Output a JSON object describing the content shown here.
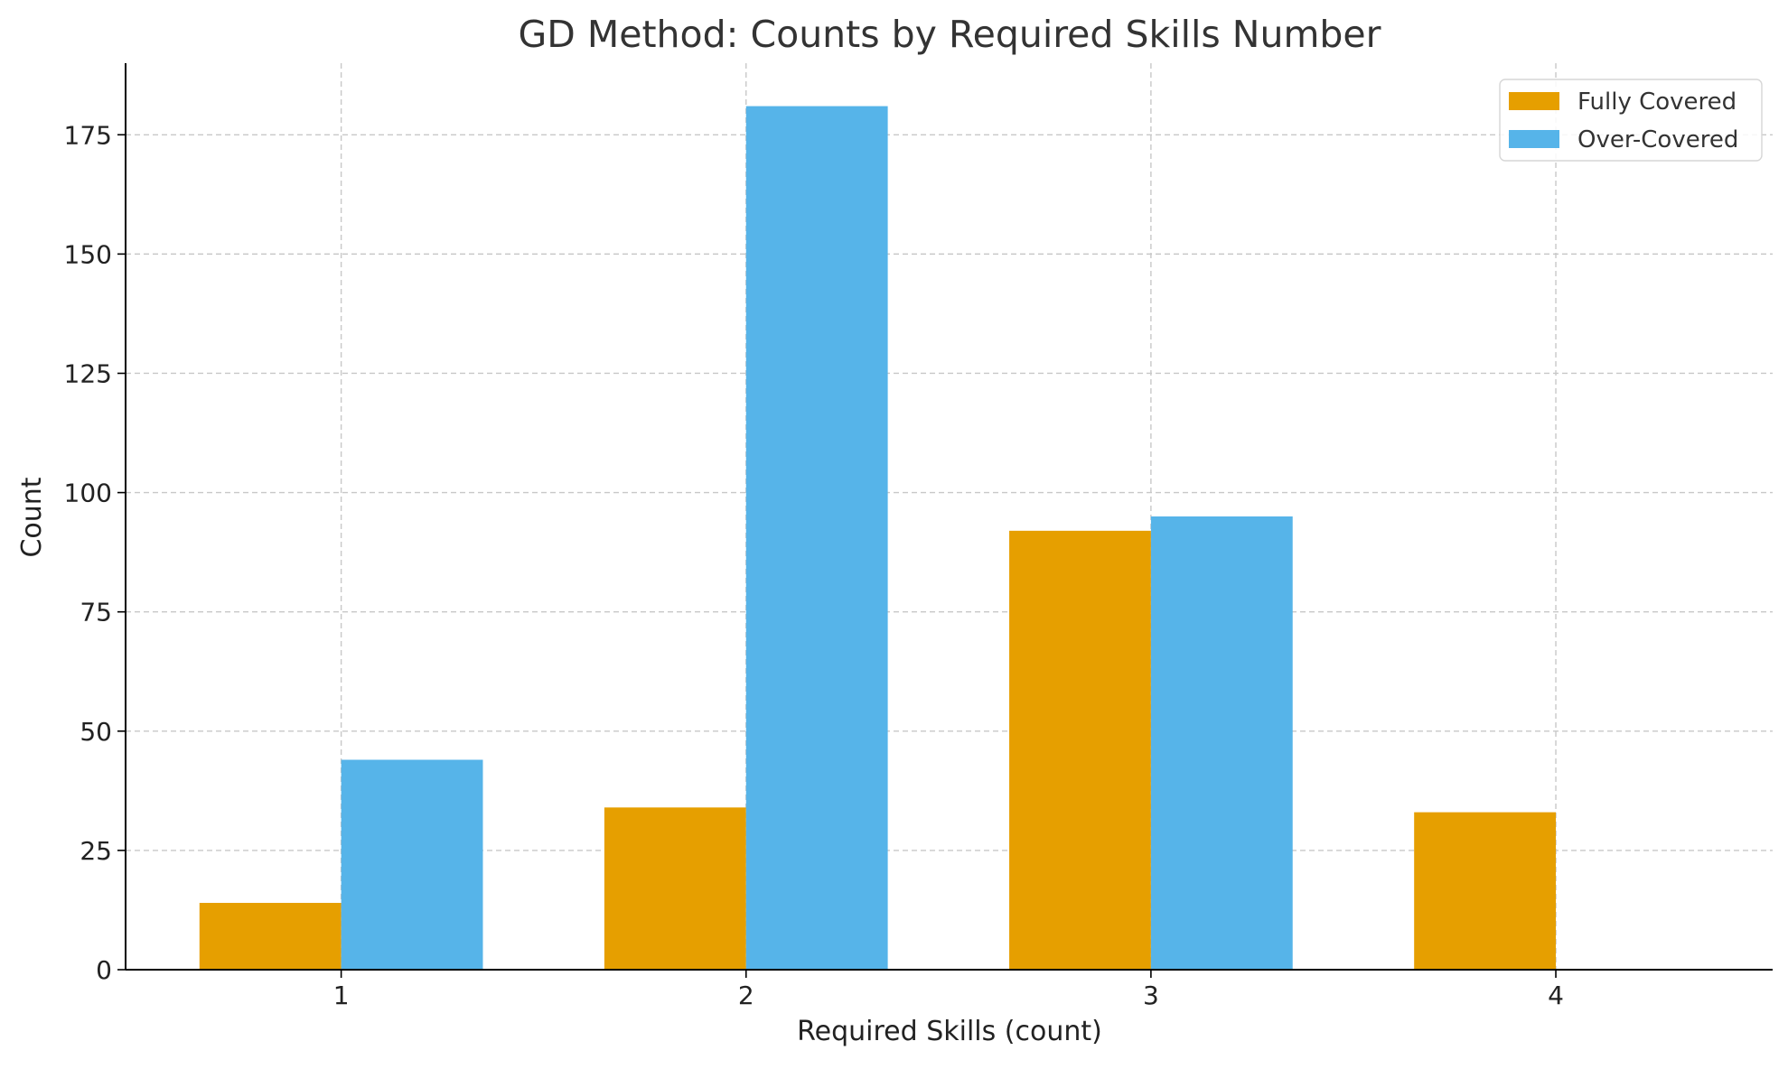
{
  "chart_data": {
    "type": "bar",
    "title": "GD Method: Counts by Required Skills Number",
    "xlabel": "Required Skills (count)",
    "ylabel": "Count",
    "categories": [
      "1",
      "2",
      "3",
      "4"
    ],
    "series": [
      {
        "name": "Fully Covered",
        "color": "#E69F00",
        "values": [
          14,
          34,
          92,
          33
        ]
      },
      {
        "name": "Over-Covered",
        "color": "#56B4E9",
        "values": [
          44,
          181,
          95,
          0
        ]
      }
    ],
    "ylim": [
      0,
      190
    ],
    "yticks": [
      0,
      25,
      50,
      75,
      100,
      125,
      150,
      175
    ],
    "grid": true,
    "legend_position": "top-right"
  }
}
